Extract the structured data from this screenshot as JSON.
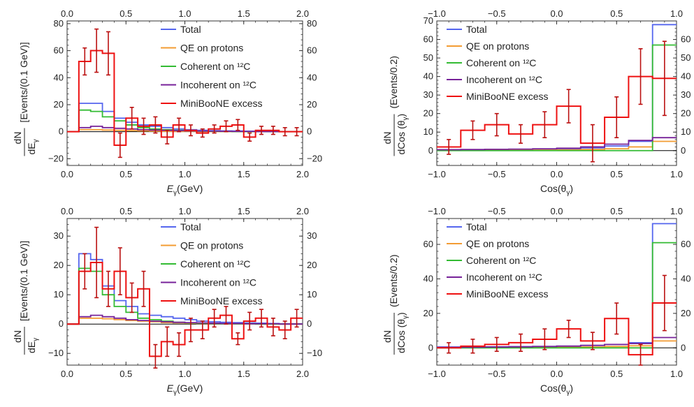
{
  "colors": {
    "total": "#5566ee",
    "qe": "#f39c33",
    "coherent": "#33bb33",
    "incoherent": "#772299",
    "miniboone": "#ee1111",
    "errorbar": "#bb1111"
  },
  "chart_data": [
    {
      "type": "line",
      "step": true,
      "x_bins": [
        0.0,
        0.1,
        0.2,
        0.3,
        0.4,
        0.5,
        0.6,
        0.7,
        0.8,
        0.9,
        1.0,
        1.1,
        1.2,
        1.3,
        1.4,
        1.5,
        1.6,
        1.7,
        1.8,
        1.9,
        2.0
      ],
      "xlim": [
        0,
        2.0
      ],
      "ylim": [
        -25,
        82
      ],
      "xlabel": "E",
      "xlabel_sub": "γ",
      "xlabel_unit": "(GeV)",
      "ylabel_num": "dN",
      "ylabel_den": "dE",
      "ylabel_den_sub": "γ",
      "ylabel_unit": "[Events/(0.1 GeV)]",
      "xticks": [
        0.0,
        0.5,
        1.0,
        1.5,
        2.0
      ],
      "xtick_labels": [
        "0.0",
        "0.5",
        "1.0",
        "1.5",
        "2.0"
      ],
      "yticks": [
        -20,
        0,
        20,
        40,
        60,
        80
      ],
      "ytick_labels": [
        "−20",
        "0",
        "20",
        "40",
        "60",
        "80"
      ],
      "yticks_right": [
        -20,
        0,
        20,
        40,
        60,
        80
      ],
      "ytick_labels_right": [
        "−20",
        "0",
        "20",
        "40",
        "60",
        "80"
      ],
      "legend_position": "top-right",
      "series": [
        {
          "name": "Total",
          "color_key": "total",
          "values": [
            0,
            21,
            21,
            15,
            10,
            7,
            5,
            4,
            3,
            2,
            1.5,
            1,
            0.8,
            0.6,
            0.5,
            0.4,
            0.3,
            0.2,
            0.1,
            0.1
          ]
        },
        {
          "name": "QE on protons",
          "color_key": "qe",
          "values": [
            0,
            1.5,
            1.5,
            1.2,
            1.0,
            0.8,
            0.6,
            0.4,
            0.3,
            0.2,
            0.2,
            0.1,
            0.1,
            0.1,
            0,
            0,
            0,
            0,
            0,
            0
          ]
        },
        {
          "name": "Coherent on ¹²C",
          "color_key": "coherent",
          "values": [
            0,
            16,
            15,
            11,
            8,
            5,
            3,
            2,
            1.5,
            1,
            0.6,
            0.4,
            0.3,
            0.2,
            0.1,
            0.1,
            0.1,
            0,
            0,
            0
          ]
        },
        {
          "name": "Incoherent on ¹²C",
          "color_key": "incoherent",
          "values": [
            0,
            3,
            4,
            3,
            2.5,
            2,
            1.5,
            1.2,
            1,
            0.8,
            0.6,
            0.5,
            0.4,
            0.3,
            0.2,
            0.2,
            0.1,
            0.1,
            0,
            0
          ]
        },
        {
          "name": "MiniBooNE excess",
          "color_key": "miniboone",
          "values": [
            0,
            52,
            60,
            58,
            -10,
            10,
            4,
            5,
            -4,
            5,
            1,
            -1,
            2,
            4,
            5,
            -4,
            1,
            1,
            0,
            0
          ],
          "errors": [
            0,
            10,
            16,
            16,
            9,
            8,
            6,
            6,
            5,
            5,
            4,
            3,
            3,
            4,
            4,
            3,
            3,
            3,
            3,
            3
          ]
        }
      ]
    },
    {
      "type": "line",
      "step": true,
      "x_bins": [
        -1.0,
        -0.8,
        -0.6,
        -0.4,
        -0.2,
        0.0,
        0.2,
        0.4,
        0.6,
        0.8,
        1.0
      ],
      "xlim": [
        -1.0,
        1.0
      ],
      "ylim": [
        -8,
        70
      ],
      "xlabel": "Cos(θ",
      "xlabel_sub": "γ",
      "xlabel_unit": ")",
      "ylabel_num": "dN",
      "ylabel_den": "dCos (θ",
      "ylabel_den_sub": "γ",
      "ylabel_den_close": ")",
      "ylabel_unit": "(Events/0.2)",
      "xticks": [
        -1.0,
        -0.5,
        0.0,
        0.5,
        1.0
      ],
      "xtick_labels": [
        "−1.0",
        "−0.5",
        "0.0",
        "0.5",
        "1.0"
      ],
      "yticks": [
        0,
        10,
        20,
        30,
        40,
        50,
        60,
        70
      ],
      "ytick_labels": [
        "0",
        "10",
        "20",
        "30",
        "40",
        "50",
        "60",
        "70"
      ],
      "yticks_right": [
        0,
        10,
        20,
        30,
        40,
        50,
        60
      ],
      "ytick_labels_right": [
        "0",
        "10",
        "20",
        "30",
        "40",
        "50",
        "60"
      ],
      "legend_position": "top-left",
      "series": [
        {
          "name": "Total",
          "color_key": "total",
          "values": [
            0.5,
            0.5,
            0.6,
            0.7,
            0.8,
            1.0,
            1.5,
            2.5,
            5,
            68
          ]
        },
        {
          "name": "QE on protons",
          "color_key": "qe",
          "values": [
            0.1,
            0.1,
            0.2,
            0.2,
            0.3,
            0.4,
            0.6,
            1.0,
            2,
            5
          ]
        },
        {
          "name": "Coherent on ¹²C",
          "color_key": "coherent",
          "values": [
            0,
            0,
            0,
            0,
            0,
            0,
            0,
            0,
            0,
            57
          ]
        },
        {
          "name": "Incoherent on ¹²C",
          "color_key": "incoherent",
          "values": [
            0.5,
            0.6,
            0.7,
            0.8,
            1.0,
            1.3,
            2,
            3.5,
            5.5,
            7
          ]
        },
        {
          "name": "MiniBooNE excess",
          "color_key": "miniboone",
          "values": [
            2,
            11,
            14,
            9,
            14,
            24,
            4,
            18,
            40,
            39
          ],
          "errors": [
            4,
            5,
            6,
            5,
            7,
            9,
            10,
            11,
            15,
            20
          ]
        }
      ]
    },
    {
      "type": "line",
      "step": true,
      "x_bins": [
        0.0,
        0.1,
        0.2,
        0.3,
        0.4,
        0.5,
        0.6,
        0.7,
        0.8,
        0.9,
        1.0,
        1.1,
        1.2,
        1.3,
        1.4,
        1.5,
        1.6,
        1.7,
        1.8,
        1.9,
        2.0
      ],
      "xlim": [
        0,
        2.0
      ],
      "ylim": [
        -14,
        36
      ],
      "xlabel": "E",
      "xlabel_sub": "γ",
      "xlabel_unit": "(GeV)",
      "ylabel_num": "dN",
      "ylabel_den": "dE",
      "ylabel_den_sub": "γ",
      "ylabel_unit": "[Events/(0.1 GeV)]",
      "xticks": [
        0.0,
        0.5,
        1.0,
        1.5,
        2.0
      ],
      "xtick_labels": [
        "0.0",
        "0.5",
        "1.0",
        "1.5",
        "2.0"
      ],
      "yticks": [
        -10,
        0,
        10,
        20,
        30
      ],
      "ytick_labels": [
        "−10",
        "0",
        "10",
        "20",
        "30"
      ],
      "yticks_right": [
        -10,
        0,
        10,
        20,
        30
      ],
      "ytick_labels_right": [
        "−10",
        "0",
        "10",
        "20",
        "30"
      ],
      "legend_position": "top-right",
      "series": [
        {
          "name": "Total",
          "color_key": "total",
          "values": [
            0,
            24,
            22,
            13,
            8,
            6,
            3.5,
            3,
            2.5,
            2,
            1.5,
            1,
            0.8,
            0.6,
            0.5,
            0.4,
            0.3,
            0.2,
            0.1,
            0.1
          ]
        },
        {
          "name": "QE on protons",
          "color_key": "qe",
          "values": [
            0,
            2,
            2,
            1.8,
            1.5,
            1.2,
            1,
            0.8,
            0.5,
            0.4,
            0.3,
            0.2,
            0.2,
            0.1,
            0.1,
            0.1,
            0,
            0,
            0,
            0
          ]
        },
        {
          "name": "Coherent on ¹²C",
          "color_key": "coherent",
          "values": [
            0,
            19,
            18,
            10,
            6,
            4,
            2,
            1.5,
            1,
            0.6,
            0.4,
            0.3,
            0.2,
            0.1,
            0.1,
            0.1,
            0,
            0,
            0,
            0
          ]
        },
        {
          "name": "Incoherent on ¹²C",
          "color_key": "incoherent",
          "values": [
            0,
            2.5,
            3,
            2.5,
            2,
            1.5,
            1.2,
            1,
            0.8,
            0.6,
            0.5,
            0.4,
            0.3,
            0.2,
            0.2,
            0.1,
            0.1,
            0.1,
            0,
            0
          ]
        },
        {
          "name": "MiniBooNE excess",
          "color_key": "miniboone",
          "values": [
            0,
            18,
            21,
            12,
            18,
            9,
            12,
            -11,
            -6,
            -7,
            -2,
            -2,
            2,
            3,
            -5,
            1,
            2,
            -1,
            -2,
            2
          ],
          "errors": [
            0,
            6,
            12,
            6,
            8,
            5,
            6,
            4,
            5,
            4,
            4,
            3,
            3,
            3,
            2,
            3,
            3,
            3,
            3,
            3
          ]
        }
      ]
    },
    {
      "type": "line",
      "step": true,
      "x_bins": [
        -1.0,
        -0.8,
        -0.6,
        -0.4,
        -0.2,
        0.0,
        0.2,
        0.4,
        0.6,
        0.8,
        1.0
      ],
      "xlim": [
        -1.0,
        1.0
      ],
      "ylim": [
        -10,
        75
      ],
      "xlabel": "Cos(θ",
      "xlabel_sub": "γ",
      "xlabel_unit": ")",
      "ylabel_num": "dN",
      "ylabel_den": "dCos (θ",
      "ylabel_den_sub": "γ",
      "ylabel_den_close": ")",
      "ylabel_unit": "(Events/0.2)",
      "xticks": [
        -1.0,
        -0.5,
        0.0,
        0.5,
        1.0
      ],
      "xtick_labels": [
        "−1.0",
        "−0.5",
        "0.0",
        "0.5",
        "1.0"
      ],
      "yticks": [
        0,
        20,
        40,
        60
      ],
      "ytick_labels": [
        "0",
        "20",
        "40",
        "60"
      ],
      "yticks_right": [
        0,
        20,
        40,
        60
      ],
      "ytick_labels_right": [
        "0",
        "20",
        "40",
        "60"
      ],
      "legend_position": "top-left",
      "series": [
        {
          "name": "Total",
          "color_key": "total",
          "values": [
            0.5,
            0.5,
            0.6,
            0.7,
            0.8,
            1.0,
            1.4,
            2,
            3,
            72
          ]
        },
        {
          "name": "QE on protons",
          "color_key": "qe",
          "values": [
            0.1,
            0.1,
            0.2,
            0.2,
            0.3,
            0.4,
            0.5,
            0.8,
            1.2,
            4
          ]
        },
        {
          "name": "Coherent on ¹²C",
          "color_key": "coherent",
          "values": [
            0,
            0,
            0,
            0,
            0,
            0,
            0,
            0,
            0,
            61
          ]
        },
        {
          "name": "Incoherent on ¹²C",
          "color_key": "incoherent",
          "values": [
            0.3,
            0.4,
            0.5,
            0.6,
            0.8,
            1,
            1.5,
            2,
            2.5,
            6
          ]
        },
        {
          "name": "MiniBooNE excess",
          "color_key": "miniboone",
          "values": [
            0,
            1,
            2,
            3,
            5,
            11,
            4,
            17,
            -4,
            26
          ],
          "errors": [
            3,
            4,
            4,
            5,
            6,
            5,
            5,
            9,
            6,
            16
          ]
        }
      ]
    }
  ]
}
